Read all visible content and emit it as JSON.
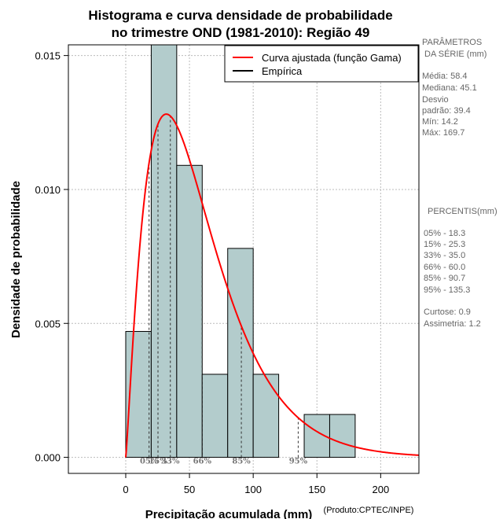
{
  "chart_data": {
    "type": "bar",
    "title_line1": "Histograma e curva densidade de probabilidade",
    "title_line2": "no trimestre OND (1981-2010): Região 49",
    "xlabel": "Precipitação acumulada (mm)",
    "ylabel": "Densidade de probabilidade",
    "credit": "(Produto:CPTEC/INPE)",
    "xlim": [
      -45,
      230
    ],
    "ylim": [
      -0.0006,
      0.0154
    ],
    "x_ticks": [
      0,
      50,
      100,
      150,
      200
    ],
    "y_ticks": [
      0.0,
      0.005,
      0.01,
      0.015
    ],
    "y_tick_labels": [
      "0.000",
      "0.005",
      "0.010",
      "0.015"
    ],
    "grid": true,
    "histogram": {
      "bin_edges": [
        0,
        20,
        40,
        60,
        80,
        100,
        120,
        140,
        160,
        180
      ],
      "density": [
        0.0047,
        0.0157,
        0.0109,
        0.0031,
        0.0078,
        0.0031,
        0.0,
        0.0016,
        0.0016
      ],
      "fill_color": "#b3cccc",
      "edge_color": "#000000"
    },
    "fitted_curve": {
      "name": "Curva ajustada (função Gama)",
      "distribution": "gamma",
      "mean": 58.4,
      "sd": 39.4,
      "x_range": [
        0,
        230
      ],
      "color": "#ff0000"
    },
    "legend": [
      {
        "label": "Curva ajustada (função Gama)",
        "color": "#ff0000"
      },
      {
        "label": "Empírica",
        "color": "#000000"
      }
    ],
    "legend_position": "top-right",
    "percentile_markers": [
      {
        "value": 18.3,
        "label": "05%"
      },
      {
        "value": 25.3,
        "label": "15%"
      },
      {
        "value": 35.0,
        "label": "33%"
      },
      {
        "value": 60.0,
        "label": "66%"
      },
      {
        "value": 90.7,
        "label": "85%"
      },
      {
        "value": 135.3,
        "label": "95%"
      }
    ]
  },
  "side_panel": {
    "params_title_1": "PARÂMETROS",
    "params_title_2": "DA SÉRIE (mm)",
    "media": "Média:  58.4",
    "mediana": "Mediana:  45.1",
    "desvio_1": "Desvio",
    "desvio_2": "padrão:  39.4",
    "min": "Mín:  14.2",
    "max": "Máx:  169.7",
    "percentis_title": "PERCENTIS(mm)",
    "p05": "05% -  18.3",
    "p15": "15% -  25.3",
    "p33": "33% -  35.0",
    "p66": "66% -  60.0",
    "p85": "85% -  90.7",
    "p95": "95% -  135.3",
    "curtose": "Curtose:  0.9",
    "assimetria": "Assimetria:  1.2"
  }
}
